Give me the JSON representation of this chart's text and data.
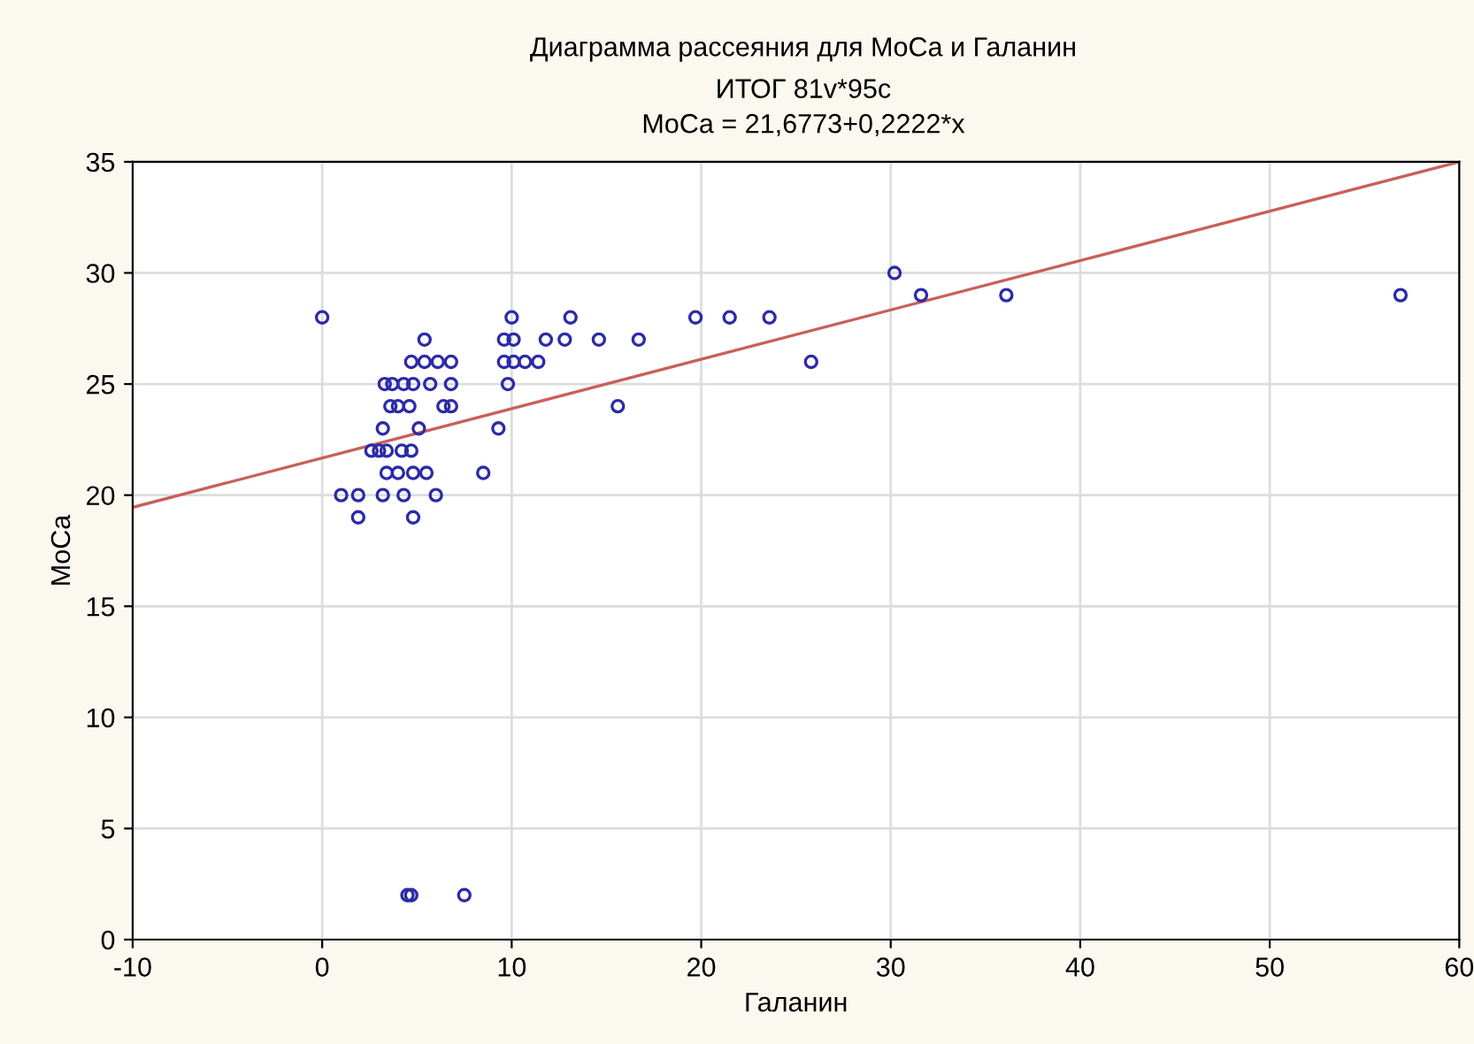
{
  "chart_data": {
    "type": "scatter",
    "title": "Диаграмма рассеяния для MoCa и Галанин",
    "subtitle": "ИТОГ 81v*95c\nMoCa = 21,6773+0,2222*x",
    "xlabel": "Галанин",
    "ylabel": "MoCa",
    "xlim": [
      -10,
      60
    ],
    "xticks": [
      -10,
      0,
      10,
      20,
      30,
      40,
      50,
      60
    ],
    "ylim": [
      0,
      35
    ],
    "yticks": [
      0,
      5,
      10,
      15,
      20,
      25,
      30,
      35
    ],
    "grid": true,
    "marker": "circle",
    "series": [
      {
        "color": "#2b2ba8",
        "x": [
          0,
          10,
          13.1,
          19.7,
          21.5,
          23.6,
          5.4,
          9.6,
          10.1,
          11.8,
          12.8,
          14.6,
          16.7,
          4.7,
          5.4,
          6.1,
          6.8,
          9.6,
          10.1,
          10.7,
          11.4,
          25.8,
          3.3,
          3.7,
          4.3,
          4.8,
          5.7,
          6.8,
          9.8,
          3.6,
          4.0,
          4.6,
          6.4,
          6.8,
          15.6,
          3.2,
          5.1,
          9.3,
          2.6,
          3.0,
          3.4,
          4.2,
          4.7,
          3.4,
          4.0,
          4.8,
          5.5,
          8.5,
          1.0,
          1.9,
          3.2,
          4.3,
          6.0,
          1.9,
          4.8,
          4.5,
          4.7,
          7.5,
          30.2,
          31.6,
          36.1,
          56.9
        ],
        "values": [
          28,
          28,
          28,
          28,
          28,
          28,
          27,
          27,
          27,
          27,
          27,
          27,
          27,
          26,
          26,
          26,
          26,
          26,
          26,
          26,
          26,
          26,
          25,
          25,
          25,
          25,
          25,
          25,
          25,
          24,
          24,
          24,
          24,
          24,
          24,
          23,
          23,
          23,
          22,
          22,
          22,
          22,
          22,
          21,
          21,
          21,
          21,
          21,
          20,
          20,
          20,
          20,
          20,
          19,
          19,
          2,
          2,
          2,
          30,
          29,
          29,
          29
        ]
      },
      {
        "type": "line",
        "color": "#c8605a",
        "marker": "none",
        "line_style": "solid",
        "x": [
          -10,
          60
        ],
        "values": [
          19.45,
          35.0
        ]
      }
    ]
  }
}
